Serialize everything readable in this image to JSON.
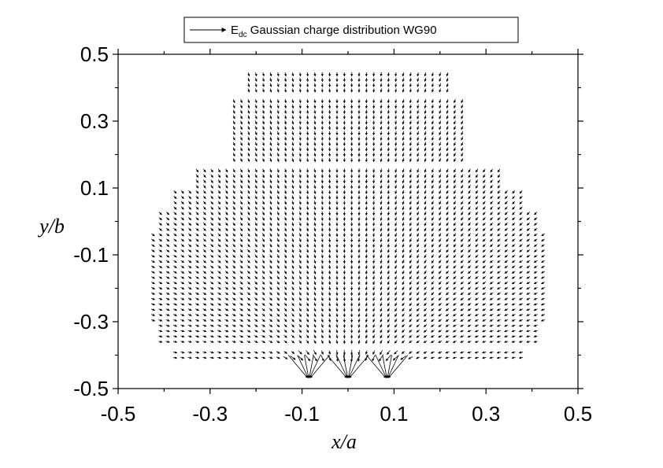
{
  "chart_data": {
    "type": "quiver",
    "title": "",
    "xlabel": "x/a",
    "ylabel": "y/b",
    "xlim": [
      -0.5,
      0.5
    ],
    "ylim": [
      -0.5,
      0.5
    ],
    "xticks": [
      "-0.5",
      "-0.3",
      "-0.1",
      "0.1",
      "0.3",
      "0.5"
    ],
    "yticks": [
      "0.5",
      "0.3",
      "0.1",
      "-0.1",
      "-0.3",
      "-0.5"
    ],
    "xtick_values": [
      -0.5,
      -0.3,
      -0.1,
      0.1,
      0.3,
      0.5
    ],
    "ytick_values": [
      0.5,
      0.3,
      0.1,
      -0.1,
      -0.3,
      -0.5
    ],
    "grid": false,
    "legend": {
      "position": "top",
      "label_main": "E",
      "label_sub": "dc",
      "label_rest": " Gaussian charge distribution WG90"
    },
    "field": {
      "grid_step": 0.016,
      "sources": [
        -0.085,
        0.0,
        0.085
      ],
      "source_y": -0.475,
      "region_rows": [
        {
          "y_from": 0.44,
          "y_to": 0.38,
          "x_from": -0.23,
          "x_to": 0.23
        },
        {
          "y_from": 0.37,
          "y_to": 0.17,
          "x_from": -0.26,
          "x_to": 0.26
        },
        {
          "y_from": 0.16,
          "y_to": 0.1,
          "x_from": -0.33,
          "x_to": 0.33
        },
        {
          "y_from": 0.09,
          "y_to": 0.04,
          "x_from": -0.39,
          "x_to": 0.39
        },
        {
          "y_from": 0.03,
          "y_to": -0.03,
          "x_from": -0.42,
          "x_to": 0.42
        },
        {
          "y_from": -0.04,
          "y_to": -0.3,
          "x_from": -0.43,
          "x_to": 0.43
        },
        {
          "y_from": -0.31,
          "y_to": -0.37,
          "x_from": -0.41,
          "x_to": 0.41
        },
        {
          "y_from": -0.38,
          "y_to": -0.42,
          "x_from": -0.39,
          "x_to": 0.39
        }
      ]
    }
  }
}
